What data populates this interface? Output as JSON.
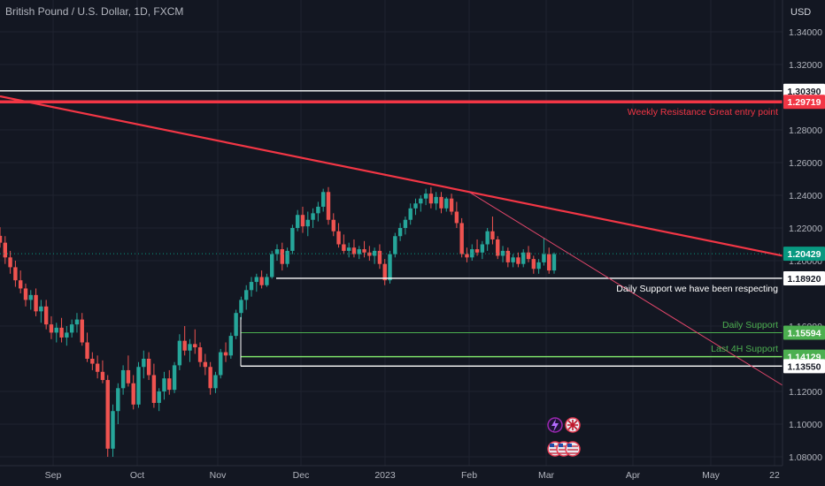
{
  "header": {
    "title": "British Pound / U.S. Dollar, 1D, FXCM",
    "currency": "USD"
  },
  "chart_data": {
    "type": "candlestick",
    "y_axis": {
      "range": [
        1.074,
        1.352
      ],
      "ticks": [
        "1.34000",
        "1.32000",
        "1.28000",
        "1.26000",
        "1.24000",
        "1.22000",
        "1.20000",
        "1.16000",
        "1.12000",
        "1.10000",
        "1.08000"
      ]
    },
    "x_axis": {
      "ticks": [
        "Sep",
        "Oct",
        "Nov",
        "Dec",
        "2023",
        "Feb",
        "Mar",
        "Apr",
        "May",
        "22"
      ]
    },
    "candles": [
      [
        1.2152,
        1.2205,
        1.208,
        1.211
      ],
      [
        1.211,
        1.215,
        1.198,
        1.202
      ],
      [
        1.202,
        1.206,
        1.192,
        1.196
      ],
      [
        1.196,
        1.2,
        1.184,
        1.188
      ],
      [
        1.188,
        1.194,
        1.18,
        1.183
      ],
      [
        1.183,
        1.186,
        1.172,
        1.176
      ],
      [
        1.176,
        1.182,
        1.17,
        1.179
      ],
      [
        1.179,
        1.183,
        1.166,
        1.169
      ],
      [
        1.169,
        1.176,
        1.162,
        1.172
      ],
      [
        1.172,
        1.176,
        1.158,
        1.161
      ],
      [
        1.161,
        1.166,
        1.152,
        1.156
      ],
      [
        1.156,
        1.162,
        1.15,
        1.159
      ],
      [
        1.159,
        1.165,
        1.15,
        1.153
      ],
      [
        1.153,
        1.16,
        1.148,
        1.156
      ],
      [
        1.156,
        1.164,
        1.153,
        1.161
      ],
      [
        1.161,
        1.168,
        1.156,
        1.164
      ],
      [
        1.164,
        1.168,
        1.148,
        1.15
      ],
      [
        1.15,
        1.156,
        1.138,
        1.14
      ],
      [
        1.14,
        1.144,
        1.133,
        1.137
      ],
      [
        1.137,
        1.142,
        1.128,
        1.132
      ],
      [
        1.132,
        1.139,
        1.125,
        1.127
      ],
      [
        1.127,
        1.13,
        1.08,
        1.085
      ],
      [
        1.085,
        1.112,
        1.08,
        1.108
      ],
      [
        1.108,
        1.125,
        1.1,
        1.122
      ],
      [
        1.122,
        1.136,
        1.118,
        1.133
      ],
      [
        1.133,
        1.142,
        1.123,
        1.125
      ],
      [
        1.125,
        1.13,
        1.109,
        1.112
      ],
      [
        1.112,
        1.138,
        1.11,
        1.135
      ],
      [
        1.135,
        1.145,
        1.128,
        1.14
      ],
      [
        1.14,
        1.144,
        1.127,
        1.13
      ],
      [
        1.13,
        1.137,
        1.11,
        1.113
      ],
      [
        1.113,
        1.122,
        1.108,
        1.12
      ],
      [
        1.12,
        1.132,
        1.115,
        1.128
      ],
      [
        1.128,
        1.133,
        1.118,
        1.121
      ],
      [
        1.121,
        1.138,
        1.119,
        1.136
      ],
      [
        1.136,
        1.155,
        1.133,
        1.151
      ],
      [
        1.151,
        1.16,
        1.142,
        1.145
      ],
      [
        1.145,
        1.152,
        1.138,
        1.149
      ],
      [
        1.149,
        1.158,
        1.143,
        1.147
      ],
      [
        1.147,
        1.15,
        1.135,
        1.138
      ],
      [
        1.138,
        1.143,
        1.13,
        1.135
      ],
      [
        1.135,
        1.138,
        1.118,
        1.122
      ],
      [
        1.122,
        1.132,
        1.119,
        1.13
      ],
      [
        1.13,
        1.146,
        1.128,
        1.144
      ],
      [
        1.144,
        1.15,
        1.138,
        1.142
      ],
      [
        1.142,
        1.156,
        1.14,
        1.154
      ],
      [
        1.154,
        1.17,
        1.152,
        1.168
      ],
      [
        1.168,
        1.178,
        1.164,
        1.176
      ],
      [
        1.176,
        1.185,
        1.17,
        1.182
      ],
      [
        1.182,
        1.19,
        1.178,
        1.187
      ],
      [
        1.187,
        1.192,
        1.181,
        1.19
      ],
      [
        1.19,
        1.194,
        1.183,
        1.185
      ],
      [
        1.185,
        1.192,
        1.184,
        1.19
      ],
      [
        1.19,
        1.206,
        1.189,
        1.204
      ],
      [
        1.204,
        1.21,
        1.2,
        1.207
      ],
      [
        1.207,
        1.211,
        1.194,
        1.198
      ],
      [
        1.198,
        1.208,
        1.196,
        1.206
      ],
      [
        1.206,
        1.222,
        1.204,
        1.22
      ],
      [
        1.22,
        1.231,
        1.218,
        1.228
      ],
      [
        1.228,
        1.233,
        1.217,
        1.221
      ],
      [
        1.221,
        1.23,
        1.215,
        1.225
      ],
      [
        1.225,
        1.232,
        1.22,
        1.229
      ],
      [
        1.229,
        1.236,
        1.224,
        1.233
      ],
      [
        1.233,
        1.244,
        1.23,
        1.242
      ],
      [
        1.242,
        1.245,
        1.222,
        1.225
      ],
      [
        1.225,
        1.229,
        1.215,
        1.218
      ],
      [
        1.218,
        1.223,
        1.208,
        1.21
      ],
      [
        1.21,
        1.216,
        1.204,
        1.206
      ],
      [
        1.206,
        1.211,
        1.202,
        1.208
      ],
      [
        1.208,
        1.213,
        1.202,
        1.204
      ],
      [
        1.204,
        1.209,
        1.201,
        1.207
      ],
      [
        1.207,
        1.212,
        1.202,
        1.205
      ],
      [
        1.205,
        1.209,
        1.2,
        1.203
      ],
      [
        1.203,
        1.208,
        1.198,
        1.206
      ],
      [
        1.206,
        1.21,
        1.195,
        1.198
      ],
      [
        1.198,
        1.201,
        1.185,
        1.188
      ],
      [
        1.188,
        1.206,
        1.186,
        1.204
      ],
      [
        1.204,
        1.217,
        1.202,
        1.215
      ],
      [
        1.215,
        1.223,
        1.212,
        1.22
      ],
      [
        1.22,
        1.227,
        1.216,
        1.225
      ],
      [
        1.225,
        1.235,
        1.222,
        1.232
      ],
      [
        1.232,
        1.238,
        1.228,
        1.235
      ],
      [
        1.235,
        1.24,
        1.23,
        1.238
      ],
      [
        1.238,
        1.244,
        1.234,
        1.241
      ],
      [
        1.241,
        1.245,
        1.232,
        1.235
      ],
      [
        1.235,
        1.242,
        1.231,
        1.239
      ],
      [
        1.239,
        1.242,
        1.229,
        1.232
      ],
      [
        1.232,
        1.239,
        1.23,
        1.238
      ],
      [
        1.238,
        1.241,
        1.228,
        1.23
      ],
      [
        1.23,
        1.236,
        1.22,
        1.223
      ],
      [
        1.223,
        1.226,
        1.202,
        1.204
      ],
      [
        1.204,
        1.208,
        1.199,
        1.202
      ],
      [
        1.202,
        1.21,
        1.2,
        1.207
      ],
      [
        1.207,
        1.213,
        1.203,
        1.205
      ],
      [
        1.205,
        1.212,
        1.201,
        1.21
      ],
      [
        1.21,
        1.22,
        1.206,
        1.218
      ],
      [
        1.218,
        1.227,
        1.21,
        1.213
      ],
      [
        1.213,
        1.215,
        1.201,
        1.203
      ],
      [
        1.203,
        1.209,
        1.199,
        1.206
      ],
      [
        1.206,
        1.208,
        1.196,
        1.199
      ],
      [
        1.199,
        1.204,
        1.196,
        1.202
      ],
      [
        1.202,
        1.205,
        1.196,
        1.198
      ],
      [
        1.198,
        1.207,
        1.196,
        1.205
      ],
      [
        1.205,
        1.209,
        1.199,
        1.201
      ],
      [
        1.201,
        1.203,
        1.192,
        1.195
      ],
      [
        1.195,
        1.201,
        1.192,
        1.199
      ],
      [
        1.199,
        1.214,
        1.197,
        1.204
      ],
      [
        1.204,
        1.208,
        1.192,
        1.194
      ],
      [
        1.194,
        1.205,
        1.192,
        1.204
      ]
    ],
    "levels": [
      {
        "price": 1.3039,
        "label": "1.30390",
        "color": "#ffffff",
        "text_color": "#131722",
        "style": "solid-white",
        "note": ""
      },
      {
        "price": 1.29719,
        "label": "1.29719",
        "color": "#f23645",
        "text_color": "#ffffff",
        "style": "thick-red",
        "note": "Weekly Resistance Great entry point"
      },
      {
        "price": 1.20429,
        "label": "1.20429",
        "color": "#089981",
        "text_color": "#ffffff",
        "style": "dotted-price",
        "note": ""
      },
      {
        "price": 1.1892,
        "label": "1.18920",
        "color": "#ffffff",
        "text_color": "#131722",
        "style": "solid-white",
        "note": "Daily Support we have been respecting"
      },
      {
        "price": 1.15594,
        "label": "1.15594",
        "color": "#4caf50",
        "text_color": "#ffffff",
        "style": "green",
        "note": "Daily Support"
      },
      {
        "price": 1.14129,
        "label": "1.14129",
        "color": "#4caf50",
        "text_color": "#ffffff",
        "style": "green-bright",
        "note": "Last 4H Support"
      },
      {
        "price": 1.1355,
        "label": "1.13550",
        "color": "#ffffff",
        "text_color": "#131722",
        "style": "solid-white",
        "note": ""
      }
    ],
    "colors": {
      "up": "#26a69a",
      "down": "#ef5350",
      "background": "#131722",
      "trendline": "#f23645"
    },
    "grid": true
  }
}
